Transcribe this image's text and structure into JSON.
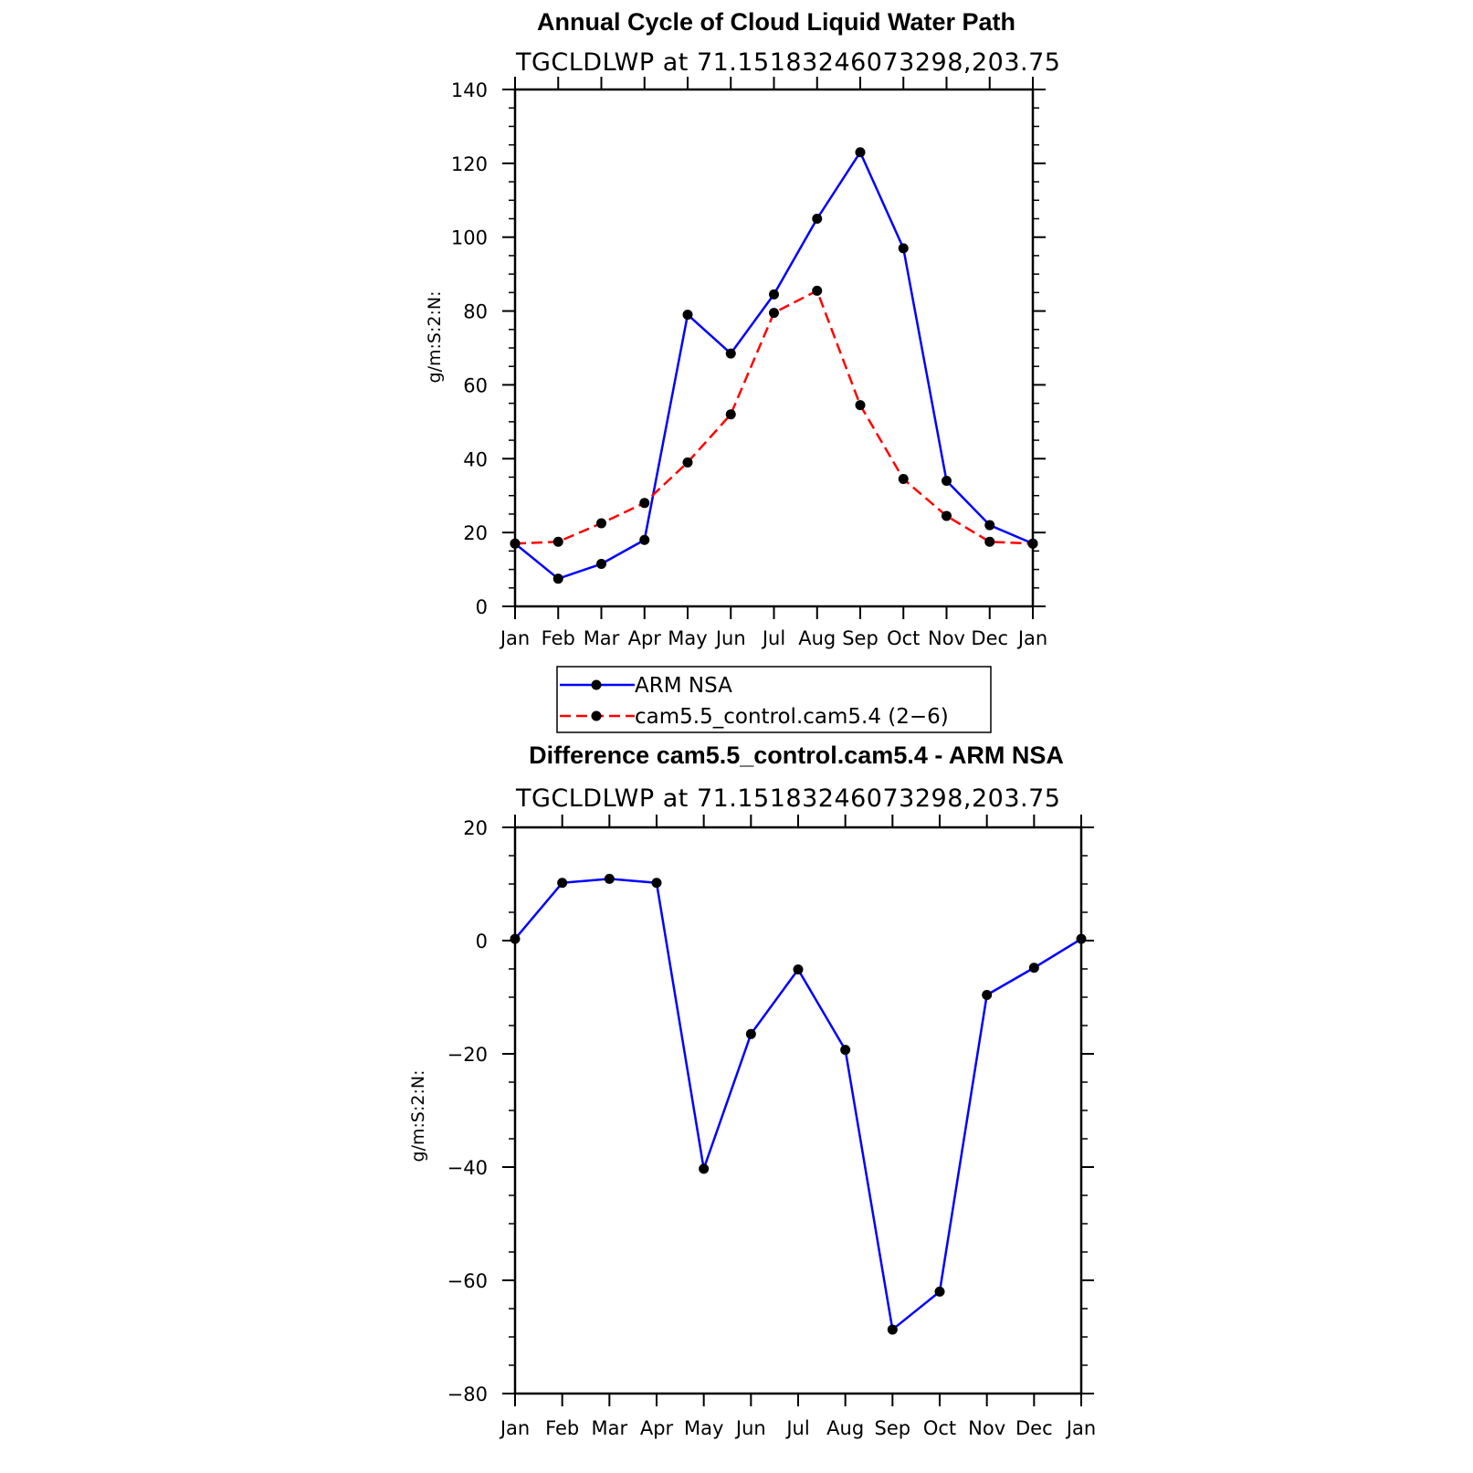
{
  "chart_data": [
    {
      "type": "line",
      "title": "Annual Cycle of Cloud Liquid Water Path",
      "subtitle": "TGCLDLWP  at  71.15183246073298,203.75",
      "ylabel": "g/m:S:2:N:",
      "xlabel": "",
      "categories": [
        "Jan",
        "Feb",
        "Mar",
        "Apr",
        "May",
        "Jun",
        "Jul",
        "Aug",
        "Sep",
        "Oct",
        "Nov",
        "Dec",
        "Jan"
      ],
      "ylim": [
        0,
        140
      ],
      "yticks": [
        "0",
        "20",
        "40",
        "60",
        "80",
        "100",
        "120",
        "140"
      ],
      "series": [
        {
          "name": "ARM  NSA",
          "color": "#0000ff",
          "dash": "solid",
          "values": [
            17,
            7.5,
            11.5,
            18,
            79,
            68.5,
            84.5,
            105,
            123,
            97,
            34,
            22,
            17
          ]
        },
        {
          "name": "cam5.5_control.cam5.4 (2−6)",
          "color": "#ff0000",
          "dash": "dashed",
          "values": [
            17,
            17.5,
            22.5,
            28,
            39,
            52,
            79.5,
            85.5,
            54.5,
            34.5,
            24.5,
            17.5,
            17
          ]
        }
      ],
      "legend": "bottom"
    },
    {
      "type": "line",
      "title": "Difference cam5.5_control.cam5.4 - ARM NSA",
      "subtitle": "TGCLDLWP  at  71.15183246073298,203.75",
      "ylabel": "g/m:S:2:N:",
      "xlabel": "",
      "categories": [
        "Jan",
        "Feb",
        "Mar",
        "Apr",
        "May",
        "Jun",
        "Jul",
        "Aug",
        "Sep",
        "Oct",
        "Nov",
        "Dec",
        "Jan"
      ],
      "ylim": [
        -80,
        20
      ],
      "yticks": [
        "−80",
        "−60",
        "−40",
        "−20",
        "0",
        "20"
      ],
      "series": [
        {
          "color": "#0000ff",
          "dash": "solid",
          "values": [
            0.3,
            10.2,
            10.9,
            10.2,
            -40.3,
            -16.5,
            -5.1,
            -19.3,
            -68.7,
            -62,
            -9.6,
            -4.8,
            0.3
          ]
        }
      ]
    }
  ]
}
